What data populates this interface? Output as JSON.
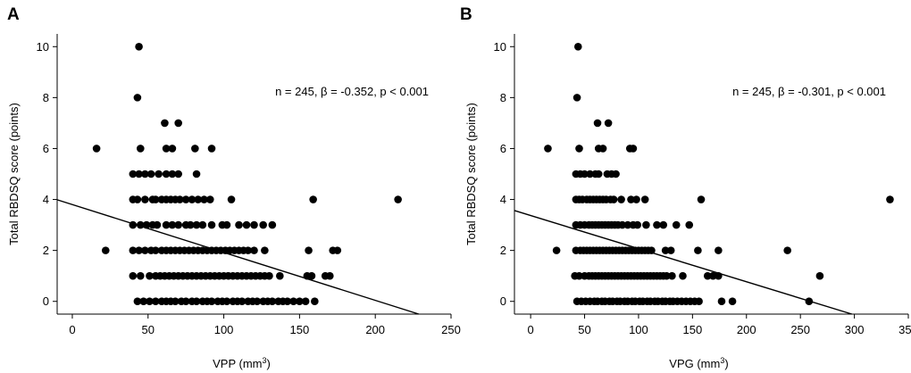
{
  "chart_data": [
    {
      "type": "scatter",
      "panel_label": "A",
      "xlabel": "VPP (mm",
      "xlabel_sup": "3",
      "xlabel_tail": ")",
      "ylabel": "Total RBDSQ score (points)",
      "annotation": "n = 245, β = -0.352, p < 0.001",
      "xlim": [
        -10,
        250
      ],
      "ylim": [
        -0.5,
        10.5
      ],
      "xticks": [
        0,
        50,
        100,
        150,
        200,
        250
      ],
      "yticks": [
        0,
        2,
        4,
        6,
        8,
        10
      ],
      "regression": {
        "intercept": 3.8,
        "slope": -0.0188
      },
      "points": [
        [
          44,
          10
        ],
        [
          43,
          8
        ],
        [
          61,
          7
        ],
        [
          70,
          7
        ],
        [
          16,
          6
        ],
        [
          45,
          6
        ],
        [
          62,
          6
        ],
        [
          66,
          6
        ],
        [
          81,
          6
        ],
        [
          92,
          6
        ],
        [
          40,
          5
        ],
        [
          44,
          5
        ],
        [
          48,
          5
        ],
        [
          52,
          5
        ],
        [
          57,
          5
        ],
        [
          62,
          5
        ],
        [
          66,
          5
        ],
        [
          70,
          5
        ],
        [
          82,
          5
        ],
        [
          40,
          4
        ],
        [
          43,
          4
        ],
        [
          48,
          4
        ],
        [
          53,
          4
        ],
        [
          55,
          4
        ],
        [
          59,
          4
        ],
        [
          62,
          4
        ],
        [
          65,
          4
        ],
        [
          68,
          4
        ],
        [
          71,
          4
        ],
        [
          75,
          4
        ],
        [
          79,
          4
        ],
        [
          83,
          4
        ],
        [
          87,
          4
        ],
        [
          91,
          4
        ],
        [
          105,
          4
        ],
        [
          159,
          4
        ],
        [
          215,
          4
        ],
        [
          40,
          3
        ],
        [
          45,
          3
        ],
        [
          49,
          3
        ],
        [
          53,
          3
        ],
        [
          56,
          3
        ],
        [
          62,
          3
        ],
        [
          66,
          3
        ],
        [
          70,
          3
        ],
        [
          75,
          3
        ],
        [
          78,
          3
        ],
        [
          82,
          3
        ],
        [
          86,
          3
        ],
        [
          92,
          3
        ],
        [
          99,
          3
        ],
        [
          102,
          3
        ],
        [
          110,
          3
        ],
        [
          115,
          3
        ],
        [
          120,
          3
        ],
        [
          126,
          3
        ],
        [
          132,
          3
        ],
        [
          22,
          2
        ],
        [
          40,
          2
        ],
        [
          44,
          2
        ],
        [
          48,
          2
        ],
        [
          52,
          2
        ],
        [
          55,
          2
        ],
        [
          59,
          2
        ],
        [
          62,
          2
        ],
        [
          65,
          2
        ],
        [
          68,
          2
        ],
        [
          71,
          2
        ],
        [
          74,
          2
        ],
        [
          77,
          2
        ],
        [
          80,
          2
        ],
        [
          83,
          2
        ],
        [
          86,
          2
        ],
        [
          89,
          2
        ],
        [
          92,
          2
        ],
        [
          95,
          2
        ],
        [
          98,
          2
        ],
        [
          101,
          2
        ],
        [
          104,
          2
        ],
        [
          107,
          2
        ],
        [
          110,
          2
        ],
        [
          113,
          2
        ],
        [
          116,
          2
        ],
        [
          120,
          2
        ],
        [
          127,
          2
        ],
        [
          156,
          2
        ],
        [
          172,
          2
        ],
        [
          175,
          2
        ],
        [
          40,
          1
        ],
        [
          45,
          1
        ],
        [
          51,
          1
        ],
        [
          55,
          1
        ],
        [
          58,
          1
        ],
        [
          61,
          1
        ],
        [
          64,
          1
        ],
        [
          67,
          1
        ],
        [
          70,
          1
        ],
        [
          73,
          1
        ],
        [
          76,
          1
        ],
        [
          79,
          1
        ],
        [
          82,
          1
        ],
        [
          85,
          1
        ],
        [
          88,
          1
        ],
        [
          91,
          1
        ],
        [
          94,
          1
        ],
        [
          97,
          1
        ],
        [
          100,
          1
        ],
        [
          103,
          1
        ],
        [
          106,
          1
        ],
        [
          109,
          1
        ],
        [
          112,
          1
        ],
        [
          115,
          1
        ],
        [
          118,
          1
        ],
        [
          121,
          1
        ],
        [
          124,
          1
        ],
        [
          127,
          1
        ],
        [
          130,
          1
        ],
        [
          137,
          1
        ],
        [
          155,
          1
        ],
        [
          158,
          1
        ],
        [
          167,
          1
        ],
        [
          170,
          1
        ],
        [
          43,
          0
        ],
        [
          47,
          0
        ],
        [
          51,
          0
        ],
        [
          55,
          0
        ],
        [
          59,
          0
        ],
        [
          62,
          0
        ],
        [
          65,
          0
        ],
        [
          68,
          0
        ],
        [
          72,
          0
        ],
        [
          75,
          0
        ],
        [
          79,
          0
        ],
        [
          82,
          0
        ],
        [
          86,
          0
        ],
        [
          89,
          0
        ],
        [
          92,
          0
        ],
        [
          96,
          0
        ],
        [
          99,
          0
        ],
        [
          102,
          0
        ],
        [
          106,
          0
        ],
        [
          109,
          0
        ],
        [
          112,
          0
        ],
        [
          116,
          0
        ],
        [
          119,
          0
        ],
        [
          122,
          0
        ],
        [
          126,
          0
        ],
        [
          129,
          0
        ],
        [
          132,
          0
        ],
        [
          136,
          0
        ],
        [
          139,
          0
        ],
        [
          142,
          0
        ],
        [
          146,
          0
        ],
        [
          150,
          0
        ],
        [
          154,
          0
        ],
        [
          160,
          0
        ]
      ]
    },
    {
      "type": "scatter",
      "panel_label": "B",
      "xlabel": "VPG (mm",
      "xlabel_sup": "3",
      "xlabel_tail": ")",
      "ylabel": "Total RBDSQ score (points)",
      "annotation": "n = 245, β = -0.301, p < 0.001",
      "xlim": [
        -15,
        350
      ],
      "ylim": [
        -0.5,
        10.5
      ],
      "xticks": [
        0,
        50,
        100,
        150,
        200,
        250,
        300,
        350
      ],
      "yticks": [
        0,
        2,
        4,
        6,
        8,
        10
      ],
      "regression": {
        "intercept": 3.37,
        "slope": -0.013
      },
      "points": [
        [
          44,
          10
        ],
        [
          43,
          8
        ],
        [
          62,
          7
        ],
        [
          72,
          7
        ],
        [
          16,
          6
        ],
        [
          45,
          6
        ],
        [
          63,
          6
        ],
        [
          67,
          6
        ],
        [
          92,
          6
        ],
        [
          95,
          6
        ],
        [
          42,
          5
        ],
        [
          46,
          5
        ],
        [
          50,
          5
        ],
        [
          55,
          5
        ],
        [
          60,
          5
        ],
        [
          63,
          5
        ],
        [
          71,
          5
        ],
        [
          75,
          5
        ],
        [
          79,
          5
        ],
        [
          42,
          4
        ],
        [
          45,
          4
        ],
        [
          48,
          4
        ],
        [
          52,
          4
        ],
        [
          55,
          4
        ],
        [
          58,
          4
        ],
        [
          61,
          4
        ],
        [
          64,
          4
        ],
        [
          67,
          4
        ],
        [
          70,
          4
        ],
        [
          74,
          4
        ],
        [
          77,
          4
        ],
        [
          84,
          4
        ],
        [
          93,
          4
        ],
        [
          98,
          4
        ],
        [
          106,
          4
        ],
        [
          158,
          4
        ],
        [
          333,
          4
        ],
        [
          42,
          3
        ],
        [
          46,
          3
        ],
        [
          50,
          3
        ],
        [
          54,
          3
        ],
        [
          57,
          3
        ],
        [
          60,
          3
        ],
        [
          63,
          3
        ],
        [
          66,
          3
        ],
        [
          69,
          3
        ],
        [
          72,
          3
        ],
        [
          75,
          3
        ],
        [
          78,
          3
        ],
        [
          81,
          3
        ],
        [
          85,
          3
        ],
        [
          90,
          3
        ],
        [
          95,
          3
        ],
        [
          99,
          3
        ],
        [
          107,
          3
        ],
        [
          117,
          3
        ],
        [
          123,
          3
        ],
        [
          135,
          3
        ],
        [
          147,
          3
        ],
        [
          24,
          2
        ],
        [
          42,
          2
        ],
        [
          46,
          2
        ],
        [
          49,
          2
        ],
        [
          52,
          2
        ],
        [
          55,
          2
        ],
        [
          58,
          2
        ],
        [
          61,
          2
        ],
        [
          64,
          2
        ],
        [
          67,
          2
        ],
        [
          70,
          2
        ],
        [
          73,
          2
        ],
        [
          76,
          2
        ],
        [
          79,
          2
        ],
        [
          82,
          2
        ],
        [
          85,
          2
        ],
        [
          88,
          2
        ],
        [
          91,
          2
        ],
        [
          94,
          2
        ],
        [
          97,
          2
        ],
        [
          100,
          2
        ],
        [
          103,
          2
        ],
        [
          106,
          2
        ],
        [
          109,
          2
        ],
        [
          112,
          2
        ],
        [
          125,
          2
        ],
        [
          130,
          2
        ],
        [
          155,
          2
        ],
        [
          174,
          2
        ],
        [
          238,
          2
        ],
        [
          41,
          1
        ],
        [
          45,
          1
        ],
        [
          50,
          1
        ],
        [
          54,
          1
        ],
        [
          57,
          1
        ],
        [
          60,
          1
        ],
        [
          63,
          1
        ],
        [
          66,
          1
        ],
        [
          69,
          1
        ],
        [
          72,
          1
        ],
        [
          75,
          1
        ],
        [
          78,
          1
        ],
        [
          81,
          1
        ],
        [
          84,
          1
        ],
        [
          87,
          1
        ],
        [
          90,
          1
        ],
        [
          93,
          1
        ],
        [
          96,
          1
        ],
        [
          99,
          1
        ],
        [
          102,
          1
        ],
        [
          105,
          1
        ],
        [
          108,
          1
        ],
        [
          111,
          1
        ],
        [
          114,
          1
        ],
        [
          117,
          1
        ],
        [
          120,
          1
        ],
        [
          123,
          1
        ],
        [
          126,
          1
        ],
        [
          131,
          1
        ],
        [
          141,
          1
        ],
        [
          164,
          1
        ],
        [
          169,
          1
        ],
        [
          174,
          1
        ],
        [
          268,
          1
        ],
        [
          43,
          0
        ],
        [
          47,
          0
        ],
        [
          51,
          0
        ],
        [
          55,
          0
        ],
        [
          59,
          0
        ],
        [
          62,
          0
        ],
        [
          66,
          0
        ],
        [
          69,
          0
        ],
        [
          73,
          0
        ],
        [
          76,
          0
        ],
        [
          80,
          0
        ],
        [
          83,
          0
        ],
        [
          87,
          0
        ],
        [
          90,
          0
        ],
        [
          94,
          0
        ],
        [
          97,
          0
        ],
        [
          101,
          0
        ],
        [
          104,
          0
        ],
        [
          108,
          0
        ],
        [
          111,
          0
        ],
        [
          115,
          0
        ],
        [
          118,
          0
        ],
        [
          122,
          0
        ],
        [
          125,
          0
        ],
        [
          129,
          0
        ],
        [
          132,
          0
        ],
        [
          136,
          0
        ],
        [
          140,
          0
        ],
        [
          144,
          0
        ],
        [
          148,
          0
        ],
        [
          152,
          0
        ],
        [
          156,
          0
        ],
        [
          177,
          0
        ],
        [
          187,
          0
        ],
        [
          258,
          0
        ]
      ]
    }
  ]
}
